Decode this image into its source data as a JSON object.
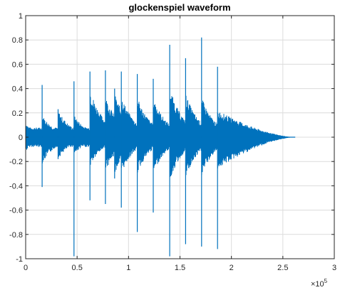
{
  "chart_data": {
    "type": "line",
    "title": "glockenspiel waveform",
    "xlabel": "",
    "ylabel": "",
    "xlim": [
      0,
      300000
    ],
    "ylim": [
      -1,
      1
    ],
    "x_exponent_label": "×10",
    "x_exponent_power": "5",
    "x_ticks": [
      {
        "value": 0,
        "label": "0"
      },
      {
        "value": 50000,
        "label": "0.5"
      },
      {
        "value": 100000,
        "label": "1"
      },
      {
        "value": 150000,
        "label": "1.5"
      },
      {
        "value": 200000,
        "label": "2"
      },
      {
        "value": 250000,
        "label": "2.5"
      },
      {
        "value": 300000,
        "label": "3"
      }
    ],
    "y_ticks": [
      {
        "value": 1,
        "label": "1"
      },
      {
        "value": 0.8,
        "label": "0.8"
      },
      {
        "value": 0.6,
        "label": "0.6"
      },
      {
        "value": 0.4,
        "label": "0.4"
      },
      {
        "value": 0.2,
        "label": "0.2"
      },
      {
        "value": 0,
        "label": "0"
      },
      {
        "value": -0.2,
        "label": "-0.2"
      },
      {
        "value": -0.4,
        "label": "-0.4"
      },
      {
        "value": -0.6,
        "label": "-0.6"
      },
      {
        "value": -0.8,
        "label": "-0.8"
      },
      {
        "value": -1,
        "label": "-1"
      }
    ],
    "grid": true,
    "line_color": "#0072bd",
    "signal_end": 262000,
    "decay_end": 262000,
    "initial_amplitude": 0.12,
    "onsets": [
      {
        "x": 16000,
        "peak_pos": 0.43,
        "peak_neg": -0.41,
        "env_pos": 0.18,
        "env_neg": -0.22
      },
      {
        "x": 31500,
        "peak_pos": 0.23,
        "peak_neg": -0.18,
        "env_pos": 0.22,
        "env_neg": -0.18
      },
      {
        "x": 47000,
        "peak_pos": 0.46,
        "peak_neg": -0.98,
        "env_pos": 0.18,
        "env_neg": -0.14
      },
      {
        "x": 62500,
        "peak_pos": 0.54,
        "peak_neg": -0.52,
        "env_pos": 0.4,
        "env_neg": -0.24
      },
      {
        "x": 77500,
        "peak_pos": 0.55,
        "peak_neg": -0.55,
        "env_pos": 0.34,
        "env_neg": -0.28
      },
      {
        "x": 86500,
        "peak_pos": 0.4,
        "peak_neg": -0.34,
        "env_pos": 0.36,
        "env_neg": -0.3
      },
      {
        "x": 93000,
        "peak_pos": 0.54,
        "peak_neg": -0.58,
        "env_pos": 0.34,
        "env_neg": -0.3
      },
      {
        "x": 108500,
        "peak_pos": 0.52,
        "peak_neg": -0.78,
        "env_pos": 0.33,
        "env_neg": -0.3
      },
      {
        "x": 124000,
        "peak_pos": 0.48,
        "peak_neg": -0.62,
        "env_pos": 0.33,
        "env_neg": -0.3
      },
      {
        "x": 140000,
        "peak_pos": 0.76,
        "peak_neg": -0.98,
        "env_pos": 0.41,
        "env_neg": -0.36
      },
      {
        "x": 155500,
        "peak_pos": 0.65,
        "peak_neg": -0.88,
        "env_pos": 0.36,
        "env_neg": -0.34
      },
      {
        "x": 171000,
        "peak_pos": 0.82,
        "peak_neg": -0.9,
        "env_pos": 0.33,
        "env_neg": -0.32
      },
      {
        "x": 186500,
        "peak_pos": 0.58,
        "peak_neg": -0.92,
        "env_pos": 0.22,
        "env_neg": -0.26
      }
    ]
  }
}
